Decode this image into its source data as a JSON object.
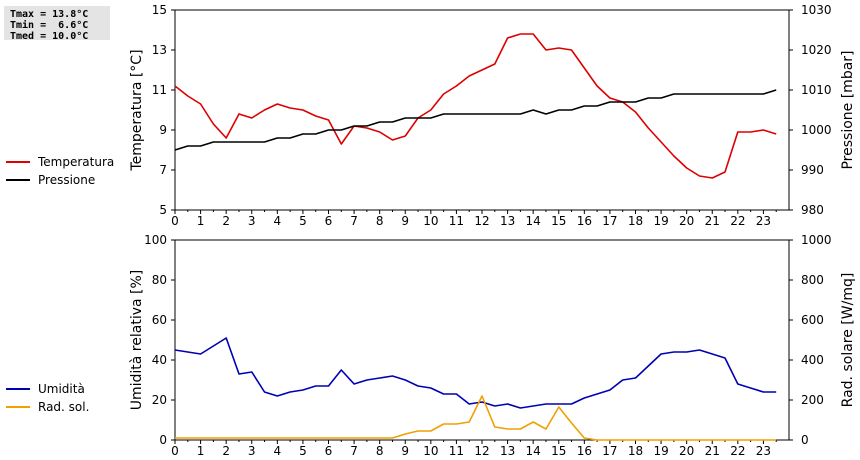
{
  "stats": {
    "tmax": "Tmax = 13.8°C",
    "tmin": "Tmin =  6.6°C",
    "tmed": "Tmed = 10.0°C"
  },
  "colors": {
    "temperature": "#dd0000",
    "pressure": "#000000",
    "humidity": "#0000b4",
    "radiation": "#f0a000"
  },
  "chart_data": [
    {
      "type": "line",
      "ylabel": "Temperatura [°C]",
      "y2label": "Pressione [mbar]",
      "xlim": [
        0,
        24
      ],
      "ylim": [
        5,
        15
      ],
      "y2lim": [
        980,
        1030
      ],
      "xticks": [
        "0",
        "1",
        "2",
        "3",
        "4",
        "5",
        "6",
        "7",
        "8",
        "9",
        "10",
        "11",
        "12",
        "13",
        "14",
        "15",
        "16",
        "17",
        "18",
        "19",
        "20",
        "21",
        "22",
        "23"
      ],
      "yticks": [
        "5",
        "7",
        "9",
        "11",
        "13",
        "15"
      ],
      "y2ticks": [
        "980",
        "990",
        "1000",
        "1010",
        "1020",
        "1030"
      ],
      "legend": "left",
      "grid": false,
      "series": [
        {
          "name": "Temperatura",
          "axis": "left",
          "x": [
            0,
            0.5,
            1,
            1.5,
            2,
            2.5,
            3,
            3.5,
            4,
            4.5,
            5,
            5.5,
            6,
            6.5,
            7,
            7.5,
            8,
            8.5,
            9,
            9.5,
            10,
            10.5,
            11,
            11.5,
            12,
            12.5,
            13,
            13.5,
            14,
            14.5,
            15,
            15.5,
            16,
            16.5,
            17,
            17.5,
            18,
            18.5,
            19,
            19.5,
            20,
            20.5,
            21,
            21.5,
            22,
            22.5,
            23,
            23.5
          ],
          "values": [
            11.2,
            10.7,
            10.3,
            9.3,
            8.6,
            9.8,
            9.6,
            10.0,
            10.3,
            10.1,
            10.0,
            9.7,
            9.5,
            8.3,
            9.2,
            9.1,
            8.9,
            8.5,
            8.7,
            9.6,
            10.0,
            10.8,
            11.2,
            11.7,
            12.0,
            12.3,
            13.6,
            13.8,
            13.8,
            13.0,
            13.1,
            13.0,
            12.1,
            11.2,
            10.6,
            10.4,
            9.9,
            9.1,
            8.4,
            7.7,
            7.1,
            6.7,
            6.6,
            6.9,
            8.9,
            8.9,
            9.0,
            8.8
          ]
        },
        {
          "name": "Pressione",
          "axis": "right",
          "x": [
            0,
            0.5,
            1,
            1.5,
            2,
            2.5,
            3,
            3.5,
            4,
            4.5,
            5,
            5.5,
            6,
            6.5,
            7,
            7.5,
            8,
            8.5,
            9,
            9.5,
            10,
            10.5,
            11,
            11.5,
            12,
            12.5,
            13,
            13.5,
            14,
            14.5,
            15,
            15.5,
            16,
            16.5,
            17,
            17.5,
            18,
            18.5,
            19,
            19.5,
            20,
            20.5,
            21,
            21.5,
            22,
            22.5,
            23,
            23.5
          ],
          "values": [
            995,
            996,
            996,
            997,
            997,
            997,
            997,
            997,
            998,
            998,
            999,
            999,
            1000,
            1000,
            1001,
            1001,
            1002,
            1002,
            1003,
            1003,
            1003,
            1004,
            1004,
            1004,
            1004,
            1004,
            1004,
            1004,
            1005,
            1004,
            1005,
            1005,
            1006,
            1006,
            1007,
            1007,
            1007,
            1008,
            1008,
            1009,
            1009,
            1009,
            1009,
            1009,
            1009,
            1009,
            1009,
            1010
          ]
        }
      ]
    },
    {
      "type": "line",
      "ylabel": "Umidità relativa [%]",
      "y2label": "Rad. solare [W/mq]",
      "xlim": [
        0,
        24
      ],
      "ylim": [
        0,
        100
      ],
      "y2lim": [
        0,
        1000
      ],
      "xticks": [
        "0",
        "1",
        "2",
        "3",
        "4",
        "5",
        "6",
        "7",
        "8",
        "9",
        "10",
        "11",
        "12",
        "13",
        "14",
        "15",
        "16",
        "17",
        "18",
        "19",
        "20",
        "21",
        "22",
        "23"
      ],
      "yticks": [
        "0",
        "20",
        "40",
        "60",
        "80",
        "100"
      ],
      "y2ticks": [
        "0",
        "200",
        "400",
        "600",
        "800",
        "1000"
      ],
      "legend": "left",
      "grid": false,
      "series": [
        {
          "name": "Umidità",
          "axis": "left",
          "x": [
            0,
            0.5,
            1,
            1.5,
            2,
            2.5,
            3,
            3.5,
            4,
            4.5,
            5,
            5.5,
            6,
            6.5,
            7,
            7.5,
            8,
            8.5,
            9,
            9.5,
            10,
            10.5,
            11,
            11.5,
            12,
            12.5,
            13,
            13.5,
            14,
            14.5,
            15,
            15.5,
            16,
            16.5,
            17,
            17.5,
            18,
            18.5,
            19,
            19.5,
            20,
            20.5,
            21,
            21.5,
            22,
            22.5,
            23,
            23.5
          ],
          "values": [
            45,
            44,
            43,
            47,
            51,
            33,
            34,
            24,
            22,
            24,
            25,
            27,
            27,
            35,
            28,
            30,
            31,
            32,
            30,
            27,
            26,
            23,
            23,
            18,
            19,
            17,
            18,
            16,
            17,
            18,
            18,
            18,
            21,
            23,
            25,
            30,
            31,
            37,
            43,
            44,
            44,
            45,
            43,
            41,
            28,
            26,
            24,
            24
          ]
        },
        {
          "name": "Rad. sol.",
          "axis": "right",
          "x": [
            0,
            0.5,
            1,
            1.5,
            2,
            2.5,
            3,
            3.5,
            4,
            4.5,
            5,
            5.5,
            6,
            6.5,
            7,
            7.5,
            8,
            8.5,
            9,
            9.5,
            10,
            10.5,
            11,
            11.5,
            12,
            12.5,
            13,
            13.5,
            14,
            14.5,
            15,
            15.5,
            16,
            16.5,
            17,
            17.5,
            18,
            18.5,
            19,
            19.5,
            20,
            20.5,
            21,
            21.5,
            22,
            22.5,
            23,
            23.5
          ],
          "values": [
            10,
            10,
            10,
            10,
            10,
            10,
            10,
            10,
            10,
            10,
            10,
            10,
            10,
            10,
            10,
            10,
            10,
            10,
            30,
            45,
            45,
            80,
            80,
            90,
            220,
            65,
            55,
            55,
            90,
            55,
            165,
            85,
            10,
            0,
            0,
            0,
            0,
            0,
            0,
            0,
            0,
            0,
            0,
            0,
            0,
            0,
            0,
            0
          ]
        }
      ]
    }
  ]
}
